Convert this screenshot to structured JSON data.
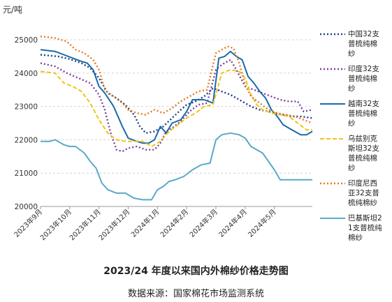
{
  "chart_data": {
    "type": "line",
    "unit": "元/吨",
    "title": "",
    "xlabel": "",
    "ylabel": "元/吨",
    "ylim": [
      20000,
      25000
    ],
    "yticks": [
      20000,
      21000,
      22000,
      23000,
      24000,
      25000
    ],
    "xlim": [
      0,
      9.3
    ],
    "x_tick_labels": [
      "2023年9月",
      "2023年10月",
      "2023年11月",
      "2023年12月",
      "2024年1月",
      "2024年2月",
      "2024年3月",
      "2024年4月",
      "2024年5月"
    ],
    "grid": "horizontal dashed",
    "legend_position": "right",
    "series": [
      {
        "name": "中国32支普梳纯棉纱",
        "color": "#1f3c88",
        "dash": "2,3",
        "x": [
          0,
          0.6,
          1.0,
          1.4,
          1.7,
          2.0,
          2.3,
          2.6,
          2.9,
          3.2,
          3.4,
          3.6,
          3.9,
          4.2,
          4.5,
          4.8,
          5.0,
          5.3,
          5.6,
          5.9,
          6.2,
          6.5,
          6.8,
          7.0,
          7.2,
          7.5,
          7.8,
          8.0,
          8.3,
          8.6,
          8.9,
          9.3
        ],
        "values": [
          24550,
          24500,
          24420,
          24300,
          24150,
          23850,
          23400,
          23250,
          23050,
          22750,
          22400,
          22200,
          22250,
          22400,
          22650,
          22900,
          23050,
          23150,
          23300,
          23550,
          23450,
          23350,
          23200,
          23100,
          23000,
          22900,
          22850,
          22800,
          22750,
          22700,
          22700,
          22650
        ]
      },
      {
        "name": "印度32支普梳纯棉纱",
        "color": "#7b3fa0",
        "dash": "2,3",
        "x": [
          0,
          0.5,
          0.9,
          1.3,
          1.7,
          2.0,
          2.2,
          2.4,
          2.6,
          2.8,
          3.0,
          3.3,
          3.6,
          3.9,
          4.1,
          4.3,
          4.5,
          4.8,
          5.1,
          5.4,
          5.7,
          6.0,
          6.2,
          6.5,
          6.7,
          7.0,
          7.3,
          7.6,
          7.9,
          8.2,
          8.5,
          8.8,
          9.0,
          9.3
        ],
        "values": [
          24300,
          24200,
          24000,
          23850,
          23700,
          23350,
          22900,
          22200,
          21700,
          21650,
          21750,
          21800,
          21700,
          21700,
          21900,
          22250,
          22350,
          22550,
          22850,
          23050,
          23100,
          24100,
          24250,
          24400,
          24100,
          23600,
          23500,
          23400,
          23300,
          23200,
          23150,
          23150,
          22850,
          22900
        ]
      },
      {
        "name": "越南32支普梳纯棉纱",
        "color": "#1a6aa8",
        "dash": "",
        "x": [
          0,
          0.5,
          0.8,
          1.1,
          1.4,
          1.6,
          1.8,
          2.0,
          2.2,
          2.5,
          2.8,
          3.0,
          3.3,
          3.5,
          3.7,
          3.9,
          4.1,
          4.3,
          4.5,
          4.8,
          5.0,
          5.2,
          5.6,
          5.9,
          6.1,
          6.3,
          6.5,
          6.7,
          6.9,
          7.1,
          7.3,
          7.5,
          7.7,
          7.9,
          8.1,
          8.3,
          8.6,
          8.9,
          9.1,
          9.3
        ],
        "values": [
          24700,
          24650,
          24550,
          24450,
          24350,
          24300,
          24100,
          23600,
          23400,
          23000,
          22400,
          22050,
          21950,
          21900,
          21900,
          22000,
          22400,
          22200,
          22500,
          22600,
          22850,
          23200,
          23200,
          23100,
          24450,
          24500,
          24650,
          24500,
          24400,
          23900,
          23700,
          23450,
          23250,
          22900,
          22700,
          22450,
          22300,
          22150,
          22150,
          22250
        ]
      },
      {
        "name": "乌兹别克斯坦32支普梳纯棉纱",
        "color": "#f0c419",
        "dash": "6,3",
        "x": [
          0,
          0.5,
          0.8,
          1.1,
          1.4,
          1.7,
          2.0,
          2.3,
          2.6,
          2.9,
          3.2,
          3.5,
          3.8,
          4.1,
          4.4,
          4.7,
          5.0,
          5.3,
          5.6,
          5.9,
          6.2,
          6.5,
          6.8,
          7.0,
          7.2,
          7.4,
          7.6,
          7.9,
          8.2,
          8.5,
          8.8,
          9.1,
          9.3
        ],
        "values": [
          24050,
          24000,
          23700,
          23600,
          23450,
          23100,
          22600,
          22200,
          22000,
          21950,
          21950,
          21950,
          21800,
          21950,
          22250,
          22450,
          22650,
          22800,
          23000,
          23050,
          24000,
          24100,
          24050,
          23850,
          23350,
          23050,
          22900,
          22800,
          22750,
          22700,
          22500,
          22300,
          22300
        ]
      },
      {
        "name": "印度尼西亚32支普梳纯棉纱",
        "color": "#e07b1f",
        "dash": "2,3",
        "x": [
          0,
          0.5,
          0.9,
          1.2,
          1.5,
          1.8,
          2.0,
          2.2,
          2.5,
          2.8,
          3.0,
          3.3,
          3.6,
          3.9,
          4.2,
          4.5,
          4.8,
          5.1,
          5.4,
          5.7,
          6.0,
          6.2,
          6.4,
          6.6,
          6.8,
          7.0,
          7.2,
          7.5,
          7.8,
          8.1,
          8.4,
          8.7,
          9.0,
          9.3
        ],
        "values": [
          25100,
          25050,
          24950,
          24700,
          24600,
          24400,
          24100,
          23500,
          23300,
          23100,
          22900,
          22800,
          22750,
          22900,
          22800,
          22950,
          23150,
          23300,
          23450,
          23500,
          24600,
          24700,
          24800,
          24750,
          24300,
          23650,
          23300,
          23100,
          22900,
          22800,
          22750,
          22700,
          22600,
          22500
        ]
      },
      {
        "name": "巴基斯坦21支普梳纯棉纱",
        "color": "#59a9c9",
        "dash": "",
        "x": [
          0,
          0.3,
          0.5,
          0.8,
          1.0,
          1.2,
          1.5,
          1.7,
          1.9,
          2.1,
          2.3,
          2.6,
          2.9,
          3.2,
          3.5,
          3.8,
          4.0,
          4.2,
          4.4,
          4.6,
          4.9,
          5.2,
          5.5,
          5.8,
          6.0,
          6.2,
          6.5,
          6.8,
          7.0,
          7.2,
          7.4,
          7.6,
          7.8,
          8.0,
          8.2,
          8.5,
          8.8,
          9.0,
          9.3
        ],
        "values": [
          21950,
          21950,
          22000,
          21850,
          21800,
          21800,
          21600,
          21350,
          21150,
          20700,
          20500,
          20400,
          20400,
          20250,
          20200,
          20200,
          20500,
          20600,
          20750,
          20800,
          20900,
          21100,
          21250,
          21300,
          22000,
          22150,
          22200,
          22150,
          22050,
          21800,
          21700,
          21600,
          21350,
          21100,
          20800,
          20800,
          20800,
          20800,
          20800
        ]
      }
    ]
  },
  "legend": [
    {
      "label": "中国32支普梳纯棉纱"
    },
    {
      "label": "印度32支普梳纯棉纱"
    },
    {
      "label": "越南32支普梳纯棉纱"
    },
    {
      "label": "乌兹别克斯坦32支普梳纯棉纱"
    },
    {
      "label": "印度尼西亚32支普梳纯棉纱"
    },
    {
      "label": "巴基斯坦21支普梳纯棉纱"
    }
  ],
  "caption": {
    "title": "2023/24 年度以来国内外棉纱价格走势图",
    "source": "数据来源：国家棉花市场监测系统"
  }
}
